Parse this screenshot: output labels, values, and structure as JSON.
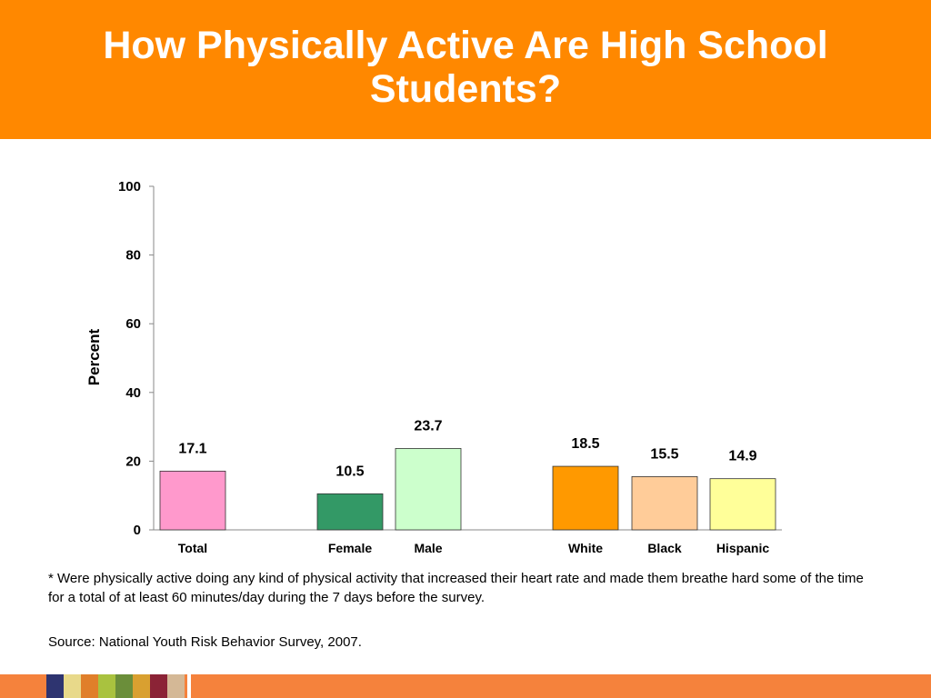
{
  "header": {
    "title": "How Physically Active Are High School Students?",
    "background": "#ff8800"
  },
  "chart_data": {
    "type": "bar",
    "title": "",
    "xlabel": "",
    "ylabel": "Percent",
    "ylim": [
      0,
      100
    ],
    "yticks": [
      "0",
      "20",
      "40",
      "60",
      "80",
      "100"
    ],
    "grid": false,
    "categories": [
      "Total",
      "Female",
      "Male",
      "White",
      "Black",
      "Hispanic"
    ],
    "values": [
      17.1,
      10.5,
      23.7,
      18.5,
      15.5,
      14.9
    ],
    "value_labels": [
      "17.1",
      "10.5",
      "23.7",
      "18.5",
      "15.5",
      "14.9"
    ],
    "colors": [
      "#ff99cc",
      "#339966",
      "#ccffcc",
      "#ff9900",
      "#ffcc99",
      "#ffff99"
    ]
  },
  "notes": {
    "footnote": "* Were physically active doing any kind of physical activity that increased their heart rate and made them breathe hard some of the time for a total of at least 60 minutes/day during the 7 days before the survey.",
    "source": "Source: National Youth Risk Behavior Survey, 2007."
  },
  "footer": {
    "bar_color": "#f5823c",
    "swatches": [
      "#2e3470",
      "#e8d98a",
      "#e07f2a",
      "#a9c23f",
      "#6b8e3a",
      "#d9a030",
      "#8b2336",
      "#d4b896"
    ]
  }
}
